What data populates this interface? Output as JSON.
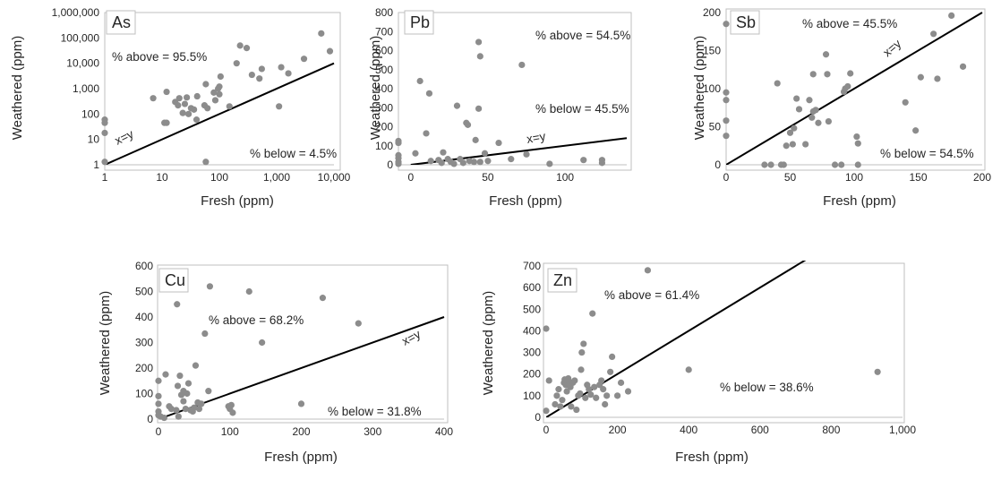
{
  "colors": {
    "point": "#8c8c8c",
    "line": "#000000",
    "axis": "#bfbfbf",
    "text": "#262626"
  },
  "chart_data": [
    {
      "panel": "As",
      "type": "scatter",
      "xscale": "log",
      "yscale": "log",
      "xlabel": "Fresh (ppm)",
      "ylabel": "Weathered (ppm)",
      "xlim": [
        1,
        10000
      ],
      "ylim": [
        1,
        1000000
      ],
      "xticks": [
        1,
        10,
        100,
        1000,
        10000
      ],
      "xtick_labels": [
        "1",
        "10",
        "100",
        "1,000",
        "10,000"
      ],
      "yticks": [
        1,
        10,
        100,
        1000,
        10000,
        100000,
        1000000
      ],
      "ytick_labels": [
        "1",
        "10",
        "100",
        "1,000",
        "10,000",
        "100,000",
        "1,000,000"
      ],
      "annotations": {
        "above": "% above = 95.5%",
        "below": "% below = 4.5%",
        "line": "x=y"
      },
      "points": [
        [
          1,
          45
        ],
        [
          1,
          60
        ],
        [
          1,
          18
        ],
        [
          1,
          1.3
        ],
        [
          7,
          420
        ],
        [
          11,
          45
        ],
        [
          12,
          45
        ],
        [
          12,
          750
        ],
        [
          17,
          300
        ],
        [
          19,
          220
        ],
        [
          20,
          420
        ],
        [
          23,
          110
        ],
        [
          25,
          250
        ],
        [
          27,
          450
        ],
        [
          29,
          100
        ],
        [
          32,
          170
        ],
        [
          36,
          150
        ],
        [
          40,
          60
        ],
        [
          41,
          500
        ],
        [
          55,
          220
        ],
        [
          58,
          1.3
        ],
        [
          58,
          1500
        ],
        [
          62,
          170
        ],
        [
          80,
          700
        ],
        [
          85,
          350
        ],
        [
          95,
          1000
        ],
        [
          100,
          600
        ],
        [
          100,
          1200
        ],
        [
          105,
          3000
        ],
        [
          150,
          200
        ],
        [
          200,
          10000
        ],
        [
          230,
          50000
        ],
        [
          300,
          40000
        ],
        [
          370,
          3500
        ],
        [
          500,
          2500
        ],
        [
          550,
          6000
        ],
        [
          1100,
          200
        ],
        [
          1200,
          7000
        ],
        [
          1600,
          4000
        ],
        [
          3000,
          15000
        ],
        [
          6000,
          150000
        ],
        [
          8500,
          30000
        ]
      ]
    },
    {
      "panel": "Pb",
      "type": "scatter",
      "xscale": "linear",
      "yscale": "linear",
      "xlabel": "Fresh (ppm)",
      "ylabel": "Weathered (ppm)",
      "xlim": [
        -8,
        140
      ],
      "ylim": [
        0,
        800
      ],
      "xticks": [
        0,
        50,
        100
      ],
      "xtick_labels": [
        "0",
        "50",
        "100"
      ],
      "yticks": [
        0,
        100,
        200,
        300,
        400,
        500,
        600,
        700,
        800
      ],
      "ytick_labels": [
        "0",
        "100",
        "200",
        "300",
        "400",
        "500",
        "600",
        "700",
        "800"
      ],
      "annotations": {
        "above": "% above = 54.5%",
        "below": "% below = 45.5%",
        "line": "x=y"
      },
      "points": [
        [
          -8,
          125
        ],
        [
          -8,
          115
        ],
        [
          -8,
          50
        ],
        [
          -8,
          35
        ],
        [
          -8,
          15
        ],
        [
          -8,
          5
        ],
        [
          3,
          60
        ],
        [
          6,
          440
        ],
        [
          10,
          165
        ],
        [
          12,
          375
        ],
        [
          13,
          20
        ],
        [
          18,
          25
        ],
        [
          20,
          10
        ],
        [
          21,
          65
        ],
        [
          24,
          30
        ],
        [
          26,
          15
        ],
        [
          28,
          5
        ],
        [
          30,
          310
        ],
        [
          32,
          30
        ],
        [
          34,
          10
        ],
        [
          36,
          220
        ],
        [
          37,
          210
        ],
        [
          38,
          20
        ],
        [
          41,
          15
        ],
        [
          42,
          130
        ],
        [
          44,
          295
        ],
        [
          44,
          645
        ],
        [
          45,
          570
        ],
        [
          45,
          15
        ],
        [
          48,
          60
        ],
        [
          50,
          20
        ],
        [
          57,
          115
        ],
        [
          65,
          30
        ],
        [
          72,
          525
        ],
        [
          75,
          55
        ],
        [
          90,
          5
        ],
        [
          112,
          25
        ],
        [
          124,
          10
        ],
        [
          124,
          25
        ]
      ]
    },
    {
      "panel": "Sb",
      "type": "scatter",
      "xscale": "linear",
      "yscale": "linear",
      "xlabel": "Fresh (ppm)",
      "ylabel": "Weathered (ppm)",
      "xlim": [
        0,
        200
      ],
      "ylim": [
        0,
        200
      ],
      "xticks": [
        0,
        50,
        100,
        150,
        200
      ],
      "xtick_labels": [
        "0",
        "50",
        "100",
        "150",
        "200"
      ],
      "yticks": [
        0,
        50,
        100,
        150,
        200
      ],
      "ytick_labels": [
        "0",
        "50",
        "100",
        "150",
        "200"
      ],
      "annotations": {
        "above": "% above = 45.5%",
        "below": "% below = 54.5%",
        "line": "x=y"
      },
      "points": [
        [
          0,
          185
        ],
        [
          0,
          95
        ],
        [
          0,
          85
        ],
        [
          0,
          58
        ],
        [
          0,
          38
        ],
        [
          30,
          0
        ],
        [
          35,
          0
        ],
        [
          40,
          107
        ],
        [
          43,
          0
        ],
        [
          45,
          0
        ],
        [
          47,
          25
        ],
        [
          50,
          42
        ],
        [
          52,
          27
        ],
        [
          53,
          48
        ],
        [
          55,
          87
        ],
        [
          57,
          73
        ],
        [
          62,
          27
        ],
        [
          65,
          85
        ],
        [
          67,
          62
        ],
        [
          68,
          70
        ],
        [
          68,
          119
        ],
        [
          70,
          72
        ],
        [
          72,
          55
        ],
        [
          78,
          145
        ],
        [
          79,
          119
        ],
        [
          80,
          57
        ],
        [
          85,
          0
        ],
        [
          90,
          0
        ],
        [
          92,
          96
        ],
        [
          93,
          100
        ],
        [
          95,
          103
        ],
        [
          97,
          120
        ],
        [
          102,
          37
        ],
        [
          103,
          28
        ],
        [
          103,
          0
        ],
        [
          140,
          82
        ],
        [
          148,
          45
        ],
        [
          152,
          115
        ],
        [
          162,
          172
        ],
        [
          165,
          113
        ],
        [
          176,
          196
        ],
        [
          185,
          129
        ]
      ]
    },
    {
      "panel": "Cu",
      "type": "scatter",
      "xscale": "linear",
      "yscale": "linear",
      "xlabel": "Fresh (ppm)",
      "ylabel": "Weathered (ppm)",
      "xlim": [
        0,
        400
      ],
      "ylim": [
        0,
        600
      ],
      "xticks": [
        0,
        100,
        200,
        300,
        400
      ],
      "xtick_labels": [
        "0",
        "100",
        "200",
        "300",
        "400"
      ],
      "yticks": [
        0,
        100,
        200,
        300,
        400,
        500,
        600
      ],
      "ytick_labels": [
        "0",
        "100",
        "200",
        "300",
        "400",
        "500",
        "600"
      ],
      "annotations": {
        "above": "% above = 68.2%",
        "below": "% below = 31.8%",
        "line": "x=y"
      },
      "points": [
        [
          0,
          150
        ],
        [
          0,
          90
        ],
        [
          0,
          60
        ],
        [
          0,
          30
        ],
        [
          0,
          15
        ],
        [
          3,
          10
        ],
        [
          8,
          5
        ],
        [
          10,
          175
        ],
        [
          15,
          50
        ],
        [
          18,
          40
        ],
        [
          25,
          35
        ],
        [
          26,
          450
        ],
        [
          27,
          130
        ],
        [
          28,
          10
        ],
        [
          30,
          170
        ],
        [
          32,
          95
        ],
        [
          35,
          110
        ],
        [
          35,
          70
        ],
        [
          38,
          40
        ],
        [
          40,
          100
        ],
        [
          42,
          140
        ],
        [
          45,
          35
        ],
        [
          48,
          30
        ],
        [
          50,
          45
        ],
        [
          52,
          210
        ],
        [
          55,
          65
        ],
        [
          57,
          40
        ],
        [
          60,
          60
        ],
        [
          65,
          335
        ],
        [
          70,
          110
        ],
        [
          72,
          520
        ],
        [
          98,
          50
        ],
        [
          100,
          40
        ],
        [
          102,
          55
        ],
        [
          104,
          25
        ],
        [
          127,
          500
        ],
        [
          145,
          300
        ],
        [
          200,
          60
        ],
        [
          230,
          475
        ],
        [
          280,
          375
        ]
      ]
    },
    {
      "panel": "Zn",
      "type": "scatter",
      "xscale": "linear",
      "yscale": "linear",
      "xlabel": "Fresh (ppm)",
      "ylabel": "Weathered (ppm)",
      "xlim": [
        0,
        1000
      ],
      "ylim": [
        0,
        700
      ],
      "xticks": [
        0,
        200,
        400,
        600,
        800,
        1000
      ],
      "xtick_labels": [
        "0",
        "200",
        "400",
        "600",
        "800",
        "1,000"
      ],
      "yticks": [
        0,
        100,
        200,
        300,
        400,
        500,
        600,
        700
      ],
      "ytick_labels": [
        "0",
        "100",
        "200",
        "300",
        "400",
        "500",
        "600",
        "700"
      ],
      "annotations": {
        "above": "% above = 61.4%",
        "below": "% below = 38.6%",
        "line": "x=y"
      },
      "points": [
        [
          0,
          410
        ],
        [
          0,
          30
        ],
        [
          8,
          170
        ],
        [
          25,
          60
        ],
        [
          30,
          100
        ],
        [
          35,
          130
        ],
        [
          40,
          50
        ],
        [
          45,
          80
        ],
        [
          50,
          160
        ],
        [
          52,
          175
        ],
        [
          55,
          150
        ],
        [
          58,
          120
        ],
        [
          60,
          170
        ],
        [
          62,
          180
        ],
        [
          65,
          165
        ],
        [
          68,
          140
        ],
        [
          70,
          50
        ],
        [
          75,
          160
        ],
        [
          80,
          170
        ],
        [
          85,
          35
        ],
        [
          90,
          100
        ],
        [
          95,
          110
        ],
        [
          98,
          220
        ],
        [
          100,
          300
        ],
        [
          105,
          340
        ],
        [
          110,
          90
        ],
        [
          115,
          150
        ],
        [
          120,
          130
        ],
        [
          125,
          105
        ],
        [
          130,
          480
        ],
        [
          135,
          140
        ],
        [
          140,
          90
        ],
        [
          150,
          150
        ],
        [
          155,
          170
        ],
        [
          160,
          130
        ],
        [
          165,
          60
        ],
        [
          170,
          100
        ],
        [
          180,
          210
        ],
        [
          185,
          280
        ],
        [
          200,
          100
        ],
        [
          210,
          160
        ],
        [
          230,
          120
        ],
        [
          285,
          680
        ],
        [
          400,
          220
        ],
        [
          930,
          210
        ]
      ]
    }
  ]
}
